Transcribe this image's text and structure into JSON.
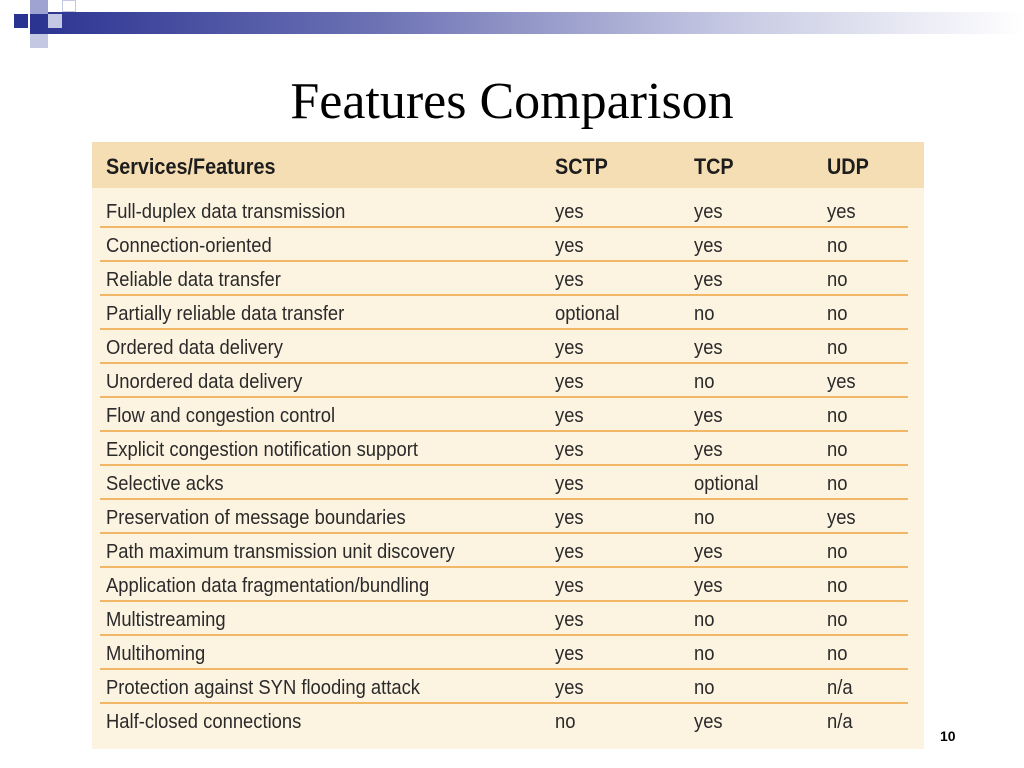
{
  "slide": {
    "title": "Features Comparison",
    "page_number": "10"
  },
  "theme": {
    "accent_dark": "#2a3391",
    "accent_light": "#9ea3d2",
    "table_header_bg": "#f6deb4",
    "table_body_bg": "#fdf3e1",
    "row_divider": "#f2b766"
  },
  "table": {
    "headers": [
      "Services/Features",
      "SCTP",
      "TCP",
      "UDP"
    ],
    "rows": [
      [
        "Full-duplex data transmission",
        "yes",
        "yes",
        "yes"
      ],
      [
        "Connection-oriented",
        "yes",
        "yes",
        "no"
      ],
      [
        "Reliable data transfer",
        "yes",
        "yes",
        "no"
      ],
      [
        "Partially reliable data transfer",
        "optional",
        "no",
        "no"
      ],
      [
        "Ordered data delivery",
        "yes",
        "yes",
        "no"
      ],
      [
        "Unordered data delivery",
        "yes",
        "no",
        "yes"
      ],
      [
        "Flow and congestion control",
        "yes",
        "yes",
        "no"
      ],
      [
        "Explicit congestion notification support",
        "yes",
        "yes",
        "no"
      ],
      [
        "Selective acks",
        "yes",
        "optional",
        "no"
      ],
      [
        "Preservation of message boundaries",
        "yes",
        "no",
        "yes"
      ],
      [
        "Path maximum transmission unit discovery",
        "yes",
        "yes",
        "no"
      ],
      [
        "Application data fragmentation/bundling",
        "yes",
        "yes",
        "no"
      ],
      [
        "Multistreaming",
        "yes",
        "no",
        "no"
      ],
      [
        "Multihoming",
        "yes",
        "no",
        "no"
      ],
      [
        "Protection against SYN flooding attack",
        "yes",
        "no",
        "n/a"
      ],
      [
        "Half-closed connections",
        "no",
        "yes",
        "n/a"
      ]
    ]
  }
}
